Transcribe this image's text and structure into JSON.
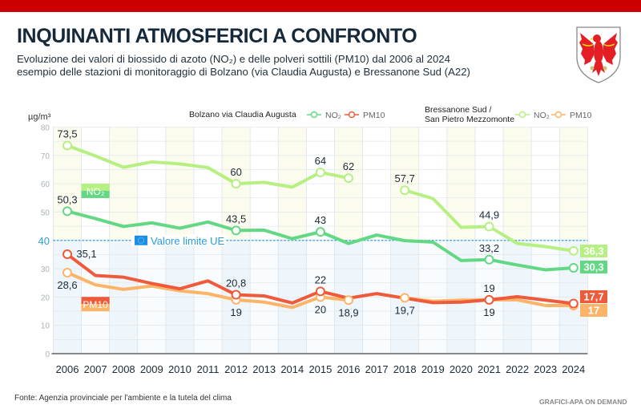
{
  "header": {
    "title": "INQUINANTI ATMOSFERICI A CONFRONTO",
    "subtitle_line1": "Evoluzione dei valori di biossido di azoto (NO₂) e delle polveri sottili (PM10) dal 2006 al 2024",
    "subtitle_line2": "esempio delle stazioni di monitoraggio di Bolzano (via Claudia Augusta) e Bressanone Sud (A22)",
    "logo": "south-tyrol-eagle-coat-of-arms",
    "bar_color": "#cc0000"
  },
  "footer": {
    "source": "Fonte: Agenzia provinciale per l'ambiente e la tutela del clima",
    "brand": "GRAFICI-APA ON DEMAND"
  },
  "chart_data": {
    "type": "line",
    "title": "INQUINANTI ATMOSFERICI A CONFRONTO",
    "ylabel": "µg/m³",
    "xlabel": "",
    "ylim": [
      0,
      80
    ],
    "yticks": [
      0,
      10,
      20,
      30,
      40,
      50,
      60,
      70,
      80
    ],
    "grid": true,
    "x": [
      2006,
      2007,
      2008,
      2009,
      2010,
      2011,
      2012,
      2013,
      2014,
      2015,
      2016,
      2017,
      2018,
      2019,
      2020,
      2021,
      2022,
      2023,
      2024
    ],
    "legend": {
      "placement": "top",
      "groups": [
        {
          "station": "Bolzano via Claudia Augusta",
          "entries": [
            {
              "label": "NO₂",
              "series": 0
            },
            {
              "label": "PM10",
              "series": 1
            }
          ]
        },
        {
          "station": "Bressanone Sud /\nSan Pietro Mezzomonte",
          "entries": [
            {
              "label": "NO₂",
              "series": 2
            },
            {
              "label": "PM10",
              "series": 3
            }
          ]
        }
      ]
    },
    "series": [
      {
        "name": "Bolzano via Claudia Augusta NO₂",
        "color": "#63d884",
        "values": [
          50.3,
          47.7,
          44.9,
          46.2,
          44.3,
          46.5,
          43.5,
          43.6,
          40.6,
          43,
          38.9,
          41.9,
          39.9,
          39.4,
          32.9,
          33.2,
          31.3,
          29.6,
          30.3
        ],
        "labels": {
          "2006": "50,3",
          "2012": "43,5",
          "2015": "43",
          "2021": "33,2"
        },
        "label_pos": "above",
        "end_label": "30,3"
      },
      {
        "name": "Bolzano via Claudia Augusta PM10",
        "color": "#ef5a3a",
        "values": [
          35.1,
          27.6,
          27.0,
          24.8,
          22.9,
          25.7,
          20.8,
          20.4,
          17.9,
          22,
          19.6,
          21.2,
          19.6,
          18.0,
          18.2,
          19,
          20.1,
          18.9,
          17.7
        ],
        "labels": {
          "2006": "35,1",
          "2012": "20,8",
          "2015": "22",
          "2021": "19"
        },
        "label_pos": "above",
        "end_label": "17,7"
      },
      {
        "name": "Bressanone Sud / San Pietro Mezzomonte NO₂",
        "color": "#b6f082",
        "values": [
          73.5,
          69.8,
          65.8,
          67.7,
          67.0,
          65.7,
          60,
          60.5,
          58.8,
          64,
          62,
          null,
          57.7,
          54.8,
          44.6,
          44.9,
          38.9,
          37.8,
          36.3
        ],
        "labels": {
          "2006": "73,5",
          "2012": "60",
          "2015": "64",
          "2016": "62",
          "2018": "57,7",
          "2021": "44,9"
        },
        "label_pos": "above",
        "end_label": "36,3"
      },
      {
        "name": "Bressanone Sud / San Pietro Mezzomonte PM10",
        "color": "#fbb468",
        "values": [
          28.6,
          24.3,
          22.7,
          23.9,
          22.2,
          21.2,
          19,
          18.2,
          16.3,
          20,
          18.9,
          null,
          19.7,
          18.5,
          18.9,
          19,
          19,
          17.0,
          17
        ],
        "labels": {
          "2006": "28,6",
          "2012": "19",
          "2015": "20",
          "2016": "18,9",
          "2018": "19,7",
          "2021": "19"
        },
        "label_pos": "below",
        "end_label": "17"
      }
    ],
    "annotations": [
      {
        "type": "hline",
        "y": 40,
        "label": "Valore limite UE",
        "color": "#2a9de0",
        "icon": "eu-flag-icon"
      },
      {
        "type": "tag",
        "x": 2007,
        "y": 57.5,
        "label": "NO₂",
        "colors": [
          "#b6f082",
          "#63d884"
        ]
      },
      {
        "type": "tag",
        "x": 2007,
        "y": 17.5,
        "label": "PM10",
        "colors": [
          "#ef5a3a",
          "#fbb468"
        ]
      }
    ]
  }
}
